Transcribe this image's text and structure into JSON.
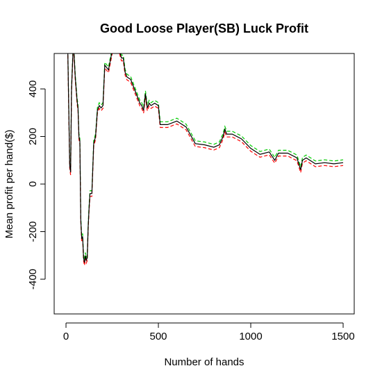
{
  "chart_data": {
    "type": "line",
    "title": "Good Loose Player(SB) Luck Profit",
    "x_label": "Number of hands",
    "y_label": "Mean profit per hand($)",
    "xlim": [
      -64,
      1560
    ],
    "ylim": [
      -546,
      549
    ],
    "xticks": [
      0,
      500,
      1000,
      1500
    ],
    "yticks": [
      -400,
      -200,
      0,
      200,
      400
    ],
    "x": [
      0,
      10,
      20,
      25,
      30,
      40,
      50,
      60,
      65,
      70,
      75,
      80,
      85,
      90,
      95,
      100,
      105,
      110,
      115,
      120,
      125,
      130,
      140,
      150,
      160,
      170,
      180,
      190,
      200,
      210,
      220,
      230,
      250,
      270,
      290,
      300,
      310,
      320,
      330,
      350,
      370,
      390,
      400,
      410,
      420,
      430,
      440,
      450,
      460,
      480,
      500,
      510,
      550,
      600,
      650,
      700,
      750,
      800,
      830,
      850,
      860,
      870,
      900,
      950,
      1000,
      1050,
      1100,
      1130,
      1150,
      1200,
      1250,
      1270,
      1280,
      1300,
      1350,
      1400,
      1450,
      1500
    ],
    "series": [
      {
        "color": "#00cc00",
        "dash": true,
        "values": [
          612,
          562,
          92,
          62,
          412,
          612,
          462,
          362,
          332,
          212,
          192,
          -138,
          -218,
          -208,
          -298,
          -318,
          -288,
          -308,
          -298,
          -168,
          -88,
          -28,
          -28,
          182,
          212,
          322,
          342,
          332,
          342,
          512,
          502,
          492,
          572,
          612,
          572,
          542,
          542,
          482,
          462,
          452,
          412,
          372,
          352,
          342,
          322,
          392,
          332,
          352,
          342,
          352,
          342,
          262,
          262,
          277,
          252,
          182,
          177,
          167,
          177,
          212,
          242,
          222,
          222,
          202,
          162,
          137,
          147,
          112,
          142,
          142,
          122,
          72,
          112,
          122,
          97,
          102,
          97,
          102
        ]
      },
      {
        "color": "#ff0000",
        "dash": true,
        "values": [
          588,
          538,
          68,
          38,
          388,
          588,
          438,
          338,
          308,
          188,
          168,
          -162,
          -242,
          -232,
          -322,
          -342,
          -312,
          -332,
          -322,
          -192,
          -112,
          -52,
          -52,
          158,
          188,
          298,
          318,
          308,
          318,
          488,
          478,
          468,
          548,
          588,
          548,
          518,
          518,
          458,
          438,
          428,
          388,
          348,
          328,
          318,
          298,
          368,
          308,
          328,
          318,
          328,
          318,
          238,
          238,
          253,
          228,
          158,
          153,
          143,
          153,
          188,
          218,
          198,
          198,
          178,
          138,
          113,
          123,
          88,
          118,
          118,
          98,
          48,
          88,
          98,
          73,
          78,
          73,
          78
        ]
      },
      {
        "color": "#000000",
        "dash": false,
        "values": [
          600,
          550,
          80,
          50,
          400,
          600,
          450,
          350,
          320,
          200,
          180,
          -150,
          -230,
          -220,
          -310,
          -330,
          -300,
          -320,
          -310,
          -180,
          -100,
          -40,
          -40,
          170,
          200,
          310,
          330,
          320,
          330,
          500,
          490,
          480,
          560,
          600,
          560,
          530,
          530,
          470,
          450,
          440,
          400,
          360,
          340,
          330,
          310,
          380,
          320,
          340,
          330,
          340,
          330,
          250,
          250,
          265,
          240,
          170,
          165,
          155,
          165,
          200,
          230,
          210,
          210,
          190,
          150,
          125,
          135,
          100,
          130,
          130,
          110,
          60,
          100,
          110,
          85,
          90,
          85,
          90
        ]
      }
    ]
  }
}
